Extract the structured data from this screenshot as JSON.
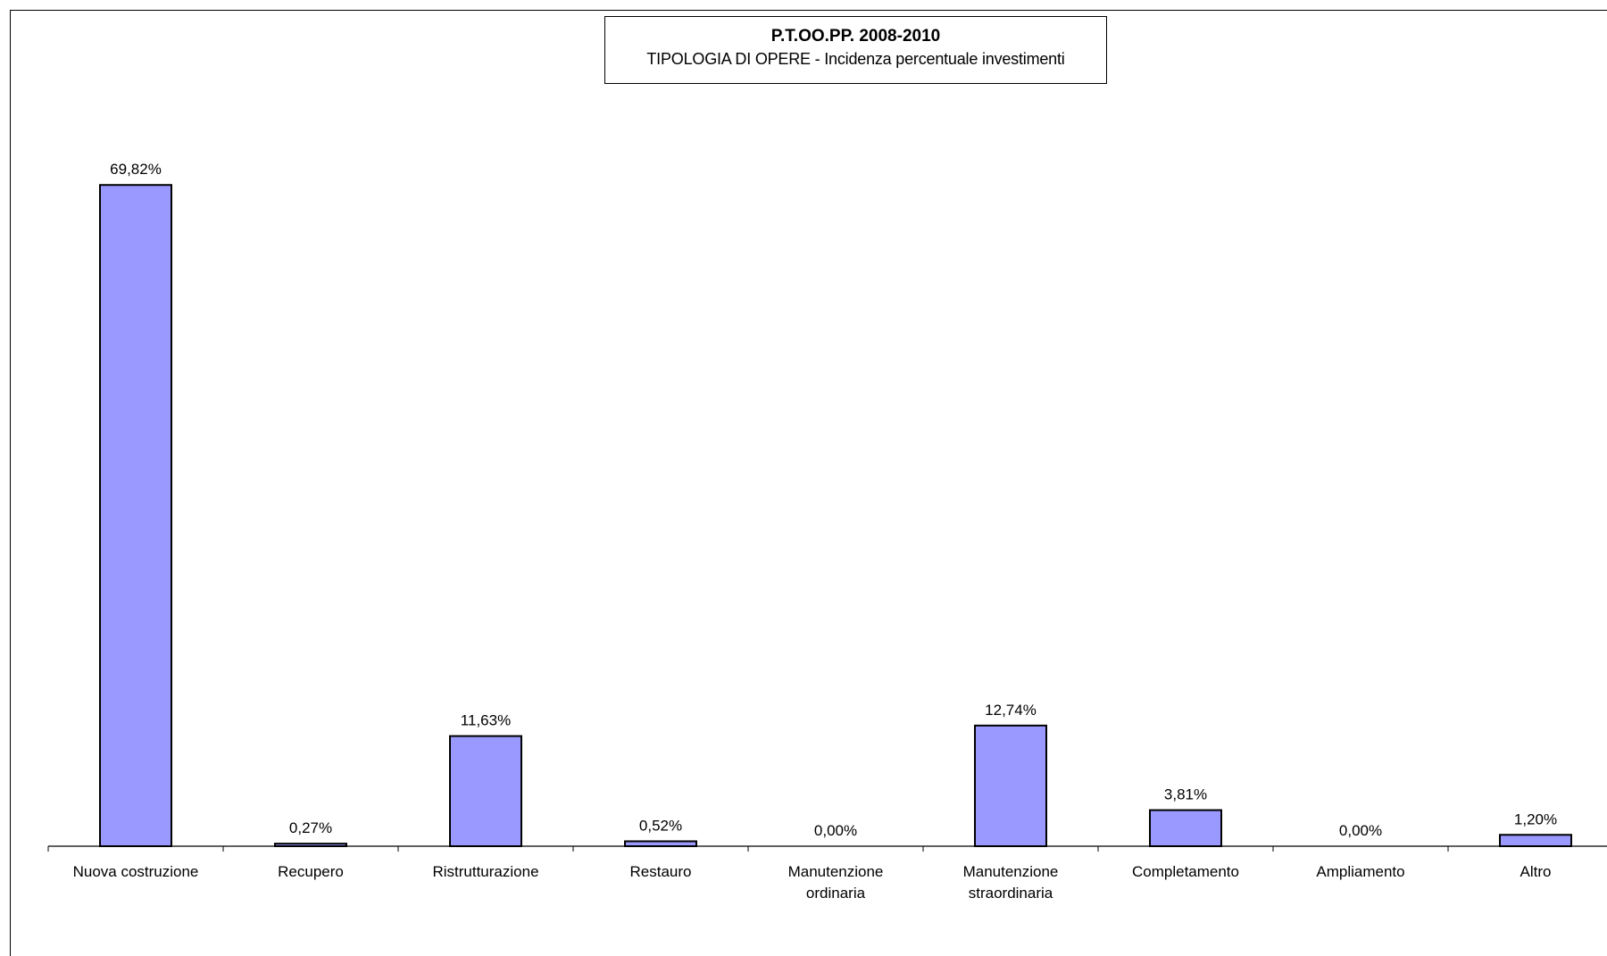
{
  "chart_data": {
    "type": "bar",
    "title": "P.T.OO.PP. 2008-2010",
    "subtitle": "TIPOLOGIA DI OPERE - Incidenza percentuale investimenti",
    "categories": [
      [
        "Nuova costruzione"
      ],
      [
        "Recupero"
      ],
      [
        "Ristrutturazione"
      ],
      [
        "Restauro"
      ],
      [
        "Manutenzione",
        "ordinaria"
      ],
      [
        "Manutenzione",
        "straordinaria"
      ],
      [
        "Completamento"
      ],
      [
        "Ampliamento"
      ],
      [
        "Altro"
      ]
    ],
    "values": [
      69.82,
      0.27,
      11.63,
      0.52,
      0.0,
      12.74,
      3.81,
      0.0,
      1.2
    ],
    "data_labels": [
      "69,82%",
      "0,27%",
      "11,63%",
      "0,52%",
      "0,00%",
      "12,74%",
      "3,81%",
      "0,00%",
      "1,20%"
    ],
    "unit": "%",
    "ylim": [
      0,
      80
    ],
    "xlabel": "",
    "ylabel": "",
    "grid": false,
    "legend": "none",
    "bar_color": "#9999ff",
    "bar_edge_color": "#000000"
  }
}
